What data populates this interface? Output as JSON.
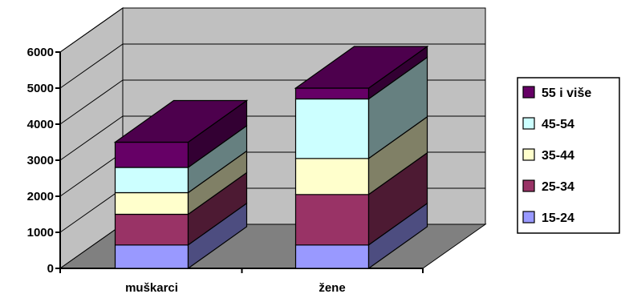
{
  "chart_data": {
    "type": "bar",
    "stacked": true,
    "three_d": true,
    "categories": [
      "muškarci",
      "žene"
    ],
    "series": [
      {
        "name": "15-24",
        "values": [
          650,
          650
        ],
        "color": "#9999FF"
      },
      {
        "name": "25-34",
        "values": [
          850,
          1400
        ],
        "color": "#993366"
      },
      {
        "name": "35-44",
        "values": [
          600,
          1000
        ],
        "color": "#FFFFCC"
      },
      {
        "name": "45-54",
        "values": [
          700,
          1650
        ],
        "color": "#CCFFFF"
      },
      {
        "name": "55 i više",
        "values": [
          700,
          300
        ],
        "color": "#660066"
      }
    ],
    "ylim": [
      0,
      6000
    ],
    "yticks": [
      "0",
      "1000",
      "2000",
      "3000",
      "4000",
      "5000",
      "6000"
    ],
    "grid": true,
    "legend_position": "right",
    "title": "",
    "xlabel": "",
    "ylabel": ""
  },
  "colors": {
    "wall": "#C0C0C0",
    "floor": "#808080",
    "grid": "#000000"
  }
}
